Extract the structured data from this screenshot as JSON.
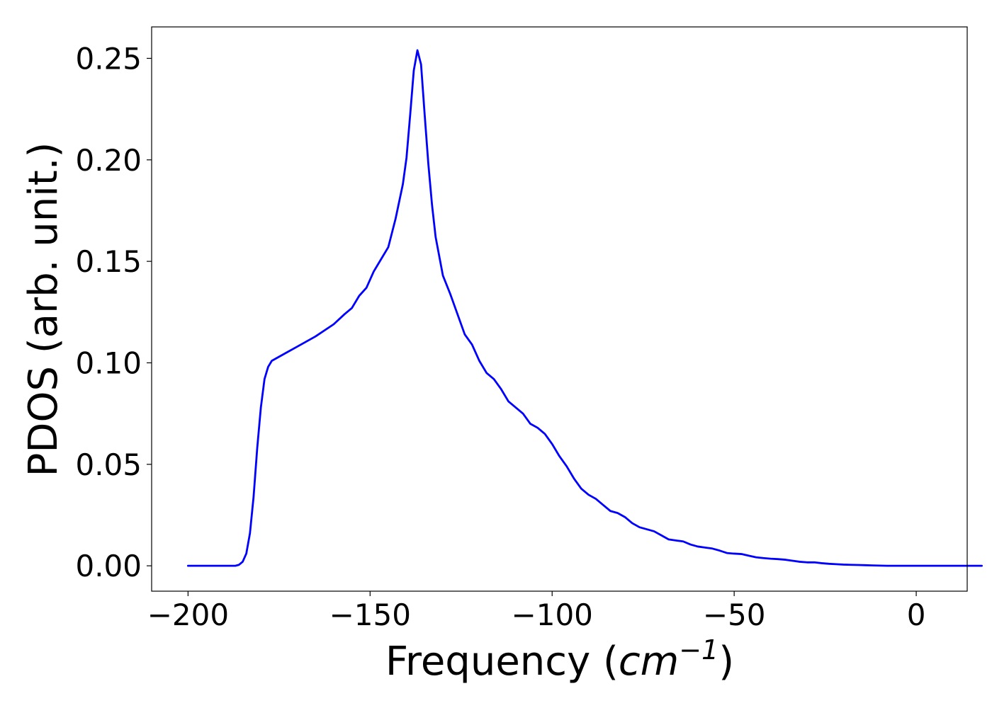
{
  "chart_data": {
    "type": "line",
    "title": "",
    "xlabel": {
      "prefix": "Frequency (",
      "unit": "cm",
      "superscript": "−1",
      "suffix": ")"
    },
    "ylabel": "PDOS (arb. unit.)",
    "xlim": [
      -210,
      14
    ],
    "ylim": [
      -0.0125,
      0.2655
    ],
    "xticks": [
      -200,
      -150,
      -100,
      -50,
      0
    ],
    "xtick_labels": [
      "−200",
      "−150",
      "−100",
      "−50",
      "0"
    ],
    "yticks": [
      0.0,
      0.05,
      0.1,
      0.15,
      0.2,
      0.25
    ],
    "ytick_labels": [
      "0.00",
      "0.05",
      "0.10",
      "0.15",
      "0.20",
      "0.25"
    ],
    "grid": false,
    "legend": false,
    "series": [
      {
        "color": "#0000ff",
        "x": [
          -200,
          -195,
          -190,
          -187,
          -186,
          -185,
          -184,
          -183,
          -182,
          -181,
          -180,
          -179,
          -178,
          -177,
          -176,
          -175,
          -173,
          -170,
          -165,
          -160,
          -157,
          -155,
          -153,
          -151,
          -149,
          -147,
          -145,
          -143,
          -141,
          -140,
          -139,
          -138,
          -137,
          -136,
          -135,
          -134,
          -133,
          -132,
          -130,
          -128,
          -126,
          -124,
          -122,
          -120,
          -118,
          -116,
          -114,
          -112,
          -110,
          -108,
          -106,
          -104,
          -102,
          -100,
          -98,
          -96,
          -94,
          -92,
          -90,
          -88,
          -86,
          -84,
          -82,
          -80,
          -78,
          -76,
          -74,
          -72,
          -70,
          -68,
          -66,
          -64,
          -62,
          -60,
          -58,
          -56,
          -54,
          -52,
          -50,
          -48,
          -46,
          -44,
          -42,
          -40,
          -38,
          -36,
          -34,
          -32,
          -30,
          -28,
          -26,
          -24,
          -22,
          -20,
          -18,
          -16,
          -14,
          -12,
          -10,
          -8,
          -6,
          -4,
          -2,
          0,
          5,
          10,
          15,
          18
        ],
        "y": [
          0.0,
          0.0,
          0.0,
          0.0,
          0.0005,
          0.002,
          0.006,
          0.016,
          0.034,
          0.058,
          0.078,
          0.092,
          0.098,
          0.101,
          0.102,
          0.103,
          0.105,
          0.108,
          0.113,
          0.119,
          0.124,
          0.127,
          0.133,
          0.137,
          0.145,
          0.151,
          0.157,
          0.171,
          0.188,
          0.201,
          0.222,
          0.244,
          0.254,
          0.247,
          0.222,
          0.198,
          0.178,
          0.162,
          0.143,
          0.134,
          0.124,
          0.114,
          0.109,
          0.101,
          0.095,
          0.092,
          0.087,
          0.081,
          0.078,
          0.075,
          0.07,
          0.068,
          0.065,
          0.06,
          0.054,
          0.049,
          0.043,
          0.038,
          0.035,
          0.033,
          0.03,
          0.027,
          0.026,
          0.024,
          0.021,
          0.019,
          0.018,
          0.017,
          0.015,
          0.013,
          0.0125,
          0.012,
          0.0105,
          0.0095,
          0.009,
          0.0085,
          0.0075,
          0.0063,
          0.006,
          0.0058,
          0.005,
          0.0042,
          0.0038,
          0.0035,
          0.0033,
          0.003,
          0.0025,
          0.002,
          0.0017,
          0.0017,
          0.0013,
          0.001,
          0.0008,
          0.0006,
          0.0005,
          0.0004,
          0.0003,
          0.0002,
          0.0001,
          0.0,
          0.0,
          0.0,
          0.0,
          0.0,
          0.0,
          0.0,
          0.0,
          0.0
        ]
      }
    ]
  }
}
